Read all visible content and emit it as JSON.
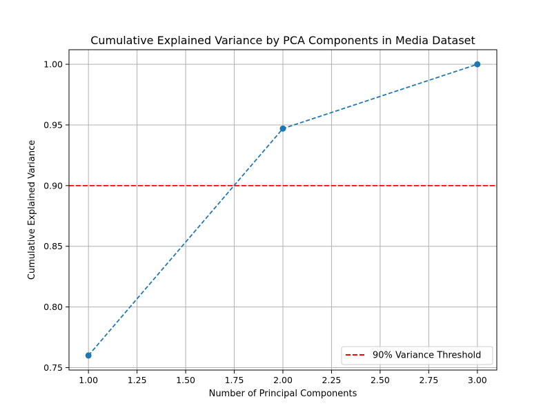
{
  "chart_data": {
    "type": "line",
    "title": "Cumulative Explained Variance by PCA Components in Media Dataset",
    "xlabel": "Number of Principal Components",
    "ylabel": "Cumulative Explained Variance",
    "xlim": [
      0.9,
      3.1
    ],
    "ylim": [
      0.748,
      1.012
    ],
    "x_ticks": [
      1.0,
      1.25,
      1.5,
      1.75,
      2.0,
      2.25,
      2.5,
      2.75,
      3.0
    ],
    "x_tick_labels": [
      "1.00",
      "1.25",
      "1.50",
      "1.75",
      "2.00",
      "2.25",
      "2.50",
      "2.75",
      "3.00"
    ],
    "y_ticks": [
      0.75,
      0.8,
      0.85,
      0.9,
      0.95,
      1.0
    ],
    "y_tick_labels": [
      "0.75",
      "0.80",
      "0.85",
      "0.90",
      "0.95",
      "1.00"
    ],
    "grid": true,
    "series": [
      {
        "x": [
          1,
          2,
          3
        ],
        "values": [
          0.76,
          0.947,
          1.0
        ],
        "color": "#1f77b4",
        "line_style": "dashed",
        "marker": "circle"
      }
    ],
    "threshold": {
      "label": "90% Variance Threshold",
      "value": 0.9,
      "color": "#ff0000",
      "line_style": "dashed"
    },
    "legend": {
      "position": "lower-right",
      "entries": [
        "90% Variance Threshold"
      ]
    }
  }
}
